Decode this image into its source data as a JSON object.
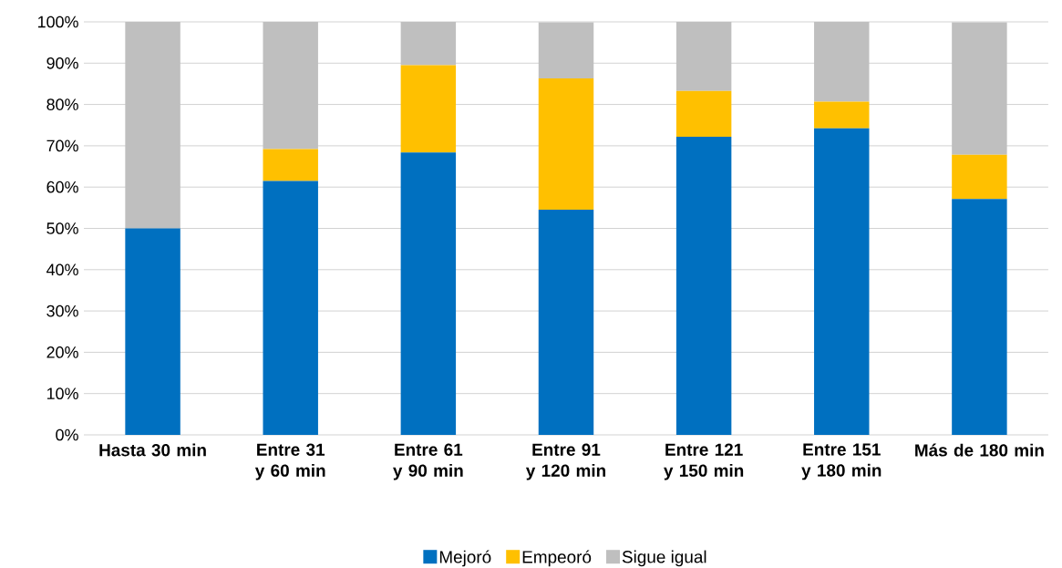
{
  "chart_data": {
    "type": "bar",
    "stacked": true,
    "categories": [
      "Hasta 30 min",
      "Entre 31 y 60 min",
      "Entre 61 y 90 min",
      "Entre 91 y 120 min",
      "Entre 121 y 150 min",
      "Entre 151 y 180 min",
      "Más de 180 min"
    ],
    "series": [
      {
        "name": "Mejoró",
        "color": "#0070c0",
        "values": [
          50.0,
          61.5,
          68.4,
          54.5,
          72.2,
          74.2,
          57.1
        ]
      },
      {
        "name": "Empeoró",
        "color": "#ffc000",
        "values": [
          0.0,
          7.7,
          21.1,
          31.8,
          11.1,
          6.5,
          10.7
        ]
      },
      {
        "name": "Sigue igual",
        "color": "#bfbfbf",
        "values": [
          50.0,
          30.8,
          10.5,
          13.6,
          16.7,
          19.4,
          32.1
        ]
      }
    ],
    "ylim": [
      0,
      100
    ],
    "yticks": [
      {
        "value": 0,
        "label": "0%"
      },
      {
        "value": 10,
        "label": "10%"
      },
      {
        "value": 20,
        "label": "20%"
      },
      {
        "value": 30,
        "label": "30%"
      },
      {
        "value": 40,
        "label": "40%"
      },
      {
        "value": 50,
        "label": "50%"
      },
      {
        "value": 60,
        "label": "60%"
      },
      {
        "value": 70,
        "label": "70%"
      },
      {
        "value": 80,
        "label": "80%"
      },
      {
        "value": 90,
        "label": "90%"
      },
      {
        "value": 100,
        "label": "100%"
      }
    ],
    "grid": "y",
    "legend": "bottom"
  }
}
